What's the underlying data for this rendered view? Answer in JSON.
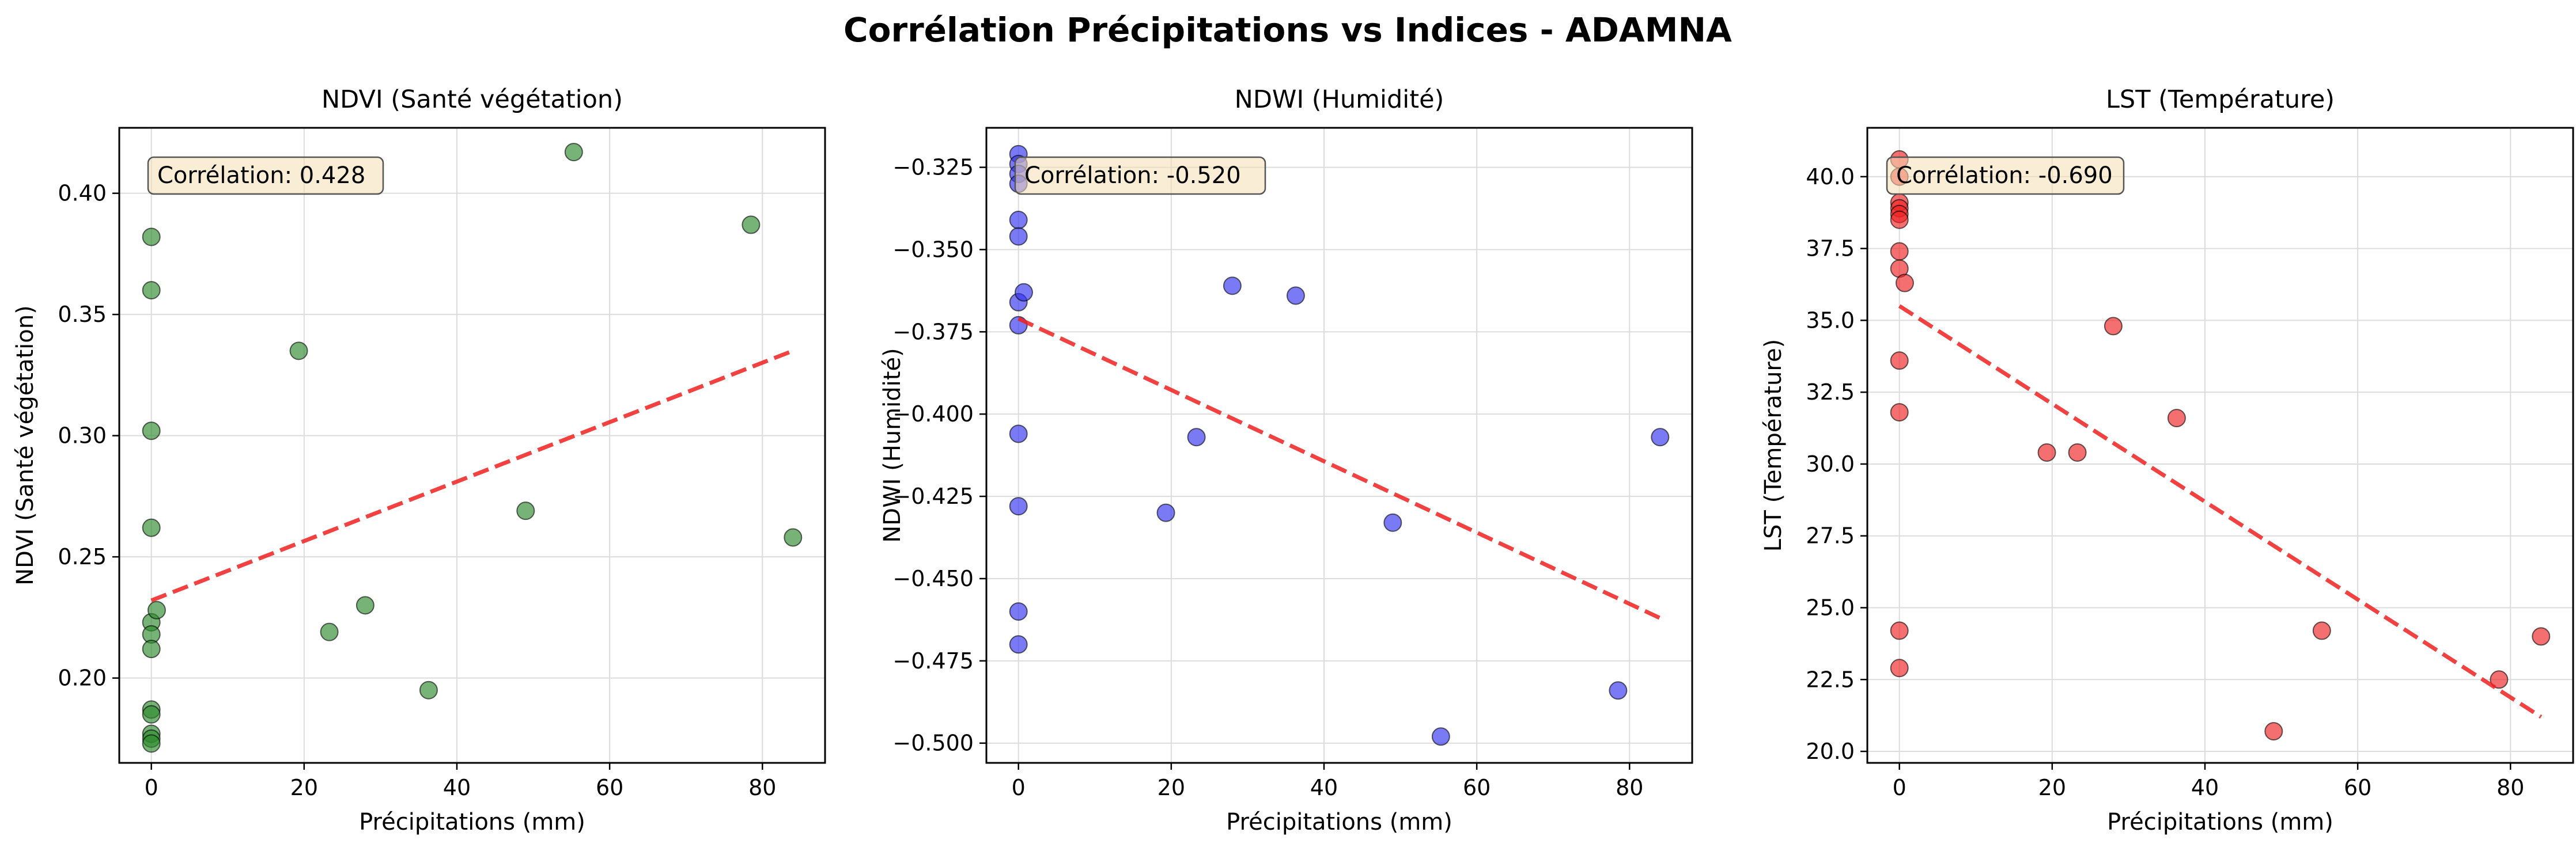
{
  "suptitle": "Corrélation Précipitations vs Indices - ADAMNA",
  "chart_data": [
    {
      "type": "scatter",
      "title": "NDVI (Santé végétation)",
      "xlabel": "Précipitations (mm)",
      "ylabel": "NDVI (Santé végétation)",
      "xlim": [
        -4.2,
        88.2
      ],
      "ylim": [
        0.165,
        0.427
      ],
      "xticks": [
        0,
        20,
        40,
        60,
        80
      ],
      "yticks": [
        0.2,
        0.25,
        0.3,
        0.35,
        0.4
      ],
      "ytick_labels": [
        "0.20",
        "0.25",
        "0.30",
        "0.35",
        "0.40"
      ],
      "grid": true,
      "point_color": "#2e8b2e",
      "annotation": "Corrélation: 0.428",
      "points": [
        [
          0,
          0.382
        ],
        [
          0,
          0.36
        ],
        [
          0,
          0.302
        ],
        [
          0,
          0.262
        ],
        [
          0,
          0.223
        ],
        [
          0,
          0.218
        ],
        [
          0,
          0.212
        ],
        [
          0,
          0.187
        ],
        [
          0,
          0.185
        ],
        [
          0,
          0.177
        ],
        [
          0,
          0.175
        ],
        [
          0,
          0.173
        ],
        [
          0.7,
          0.228
        ],
        [
          19.3,
          0.335
        ],
        [
          23.3,
          0.219
        ],
        [
          28.0,
          0.23
        ],
        [
          36.3,
          0.195
        ],
        [
          49.0,
          0.269
        ],
        [
          55.3,
          0.417
        ],
        [
          78.5,
          0.387
        ],
        [
          84.0,
          0.258
        ]
      ],
      "trend": {
        "x": [
          0,
          84
        ],
        "y": [
          0.232,
          0.335
        ]
      }
    },
    {
      "type": "scatter",
      "title": "NDWI (Humidité)",
      "xlabel": "Précipitations (mm)",
      "ylabel": "NDWI (Humidité)",
      "xlim": [
        -4.2,
        88.2
      ],
      "ylim": [
        -0.506,
        -0.313
      ],
      "xticks": [
        0,
        20,
        40,
        60,
        80
      ],
      "yticks": [
        -0.5,
        -0.475,
        -0.45,
        -0.425,
        -0.4,
        -0.375,
        -0.35,
        -0.325
      ],
      "ytick_labels": [
        "−0.500",
        "−0.475",
        "−0.450",
        "−0.425",
        "−0.400",
        "−0.375",
        "−0.350",
        "−0.325"
      ],
      "grid": true,
      "point_color": "#3333ee",
      "annotation": "Corrélation: -0.520",
      "points": [
        [
          0,
          -0.321
        ],
        [
          0,
          -0.324
        ],
        [
          0,
          -0.327
        ],
        [
          0,
          -0.33
        ],
        [
          0,
          -0.341
        ],
        [
          0,
          -0.346
        ],
        [
          0,
          -0.366
        ],
        [
          0,
          -0.373
        ],
        [
          0,
          -0.406
        ],
        [
          0,
          -0.428
        ],
        [
          0,
          -0.46
        ],
        [
          0,
          -0.47
        ],
        [
          0.7,
          -0.363
        ],
        [
          19.3,
          -0.43
        ],
        [
          23.3,
          -0.407
        ],
        [
          28.0,
          -0.361
        ],
        [
          36.3,
          -0.364
        ],
        [
          49.0,
          -0.433
        ],
        [
          55.3,
          -0.498
        ],
        [
          78.5,
          -0.484
        ],
        [
          84.0,
          -0.407
        ]
      ],
      "trend": {
        "x": [
          0,
          84
        ],
        "y": [
          -0.371,
          -0.462
        ]
      }
    },
    {
      "type": "scatter",
      "title": "LST (Température)",
      "xlabel": "Précipitations (mm)",
      "ylabel": "LST (Température)",
      "xlim": [
        -4.2,
        88.2
      ],
      "ylim": [
        19.6,
        41.7
      ],
      "xticks": [
        0,
        20,
        40,
        60,
        80
      ],
      "yticks": [
        20.0,
        22.5,
        25.0,
        27.5,
        30.0,
        32.5,
        35.0,
        37.5,
        40.0
      ],
      "ytick_labels": [
        "20.0",
        "22.5",
        "25.0",
        "27.5",
        "30.0",
        "32.5",
        "35.0",
        "37.5",
        "40.0"
      ],
      "grid": true,
      "point_color": "#ee2222",
      "annotation": "Corrélation: -0.690",
      "points": [
        [
          0,
          40.6
        ],
        [
          0,
          40.0
        ],
        [
          0,
          39.1
        ],
        [
          0,
          38.9
        ],
        [
          0,
          38.7
        ],
        [
          0,
          38.5
        ],
        [
          0,
          37.4
        ],
        [
          0,
          36.8
        ],
        [
          0,
          33.6
        ],
        [
          0,
          31.8
        ],
        [
          0,
          24.2
        ],
        [
          0,
          22.9
        ],
        [
          0.7,
          36.3
        ],
        [
          19.3,
          30.4
        ],
        [
          23.3,
          30.4
        ],
        [
          28.0,
          34.8
        ],
        [
          36.3,
          31.6
        ],
        [
          49.0,
          20.7
        ],
        [
          55.3,
          24.2
        ],
        [
          78.5,
          22.5
        ],
        [
          84.0,
          24.0
        ]
      ],
      "trend": {
        "x": [
          0,
          84
        ],
        "y": [
          35.5,
          21.2
        ]
      }
    }
  ]
}
